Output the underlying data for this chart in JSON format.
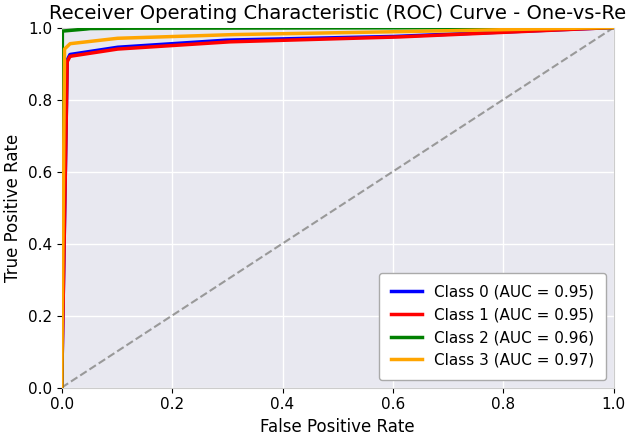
{
  "title": "Receiver Operating Characteristic (ROC) Curve - One-vs-Re",
  "xlabel": "False Positive Rate",
  "ylabel": "True Positive Rate",
  "xlim": [
    0.0,
    1.0
  ],
  "ylim": [
    0.0,
    1.0
  ],
  "background_color": "#e8e8f0",
  "grid": true,
  "classes": [
    {
      "label": "Class 0 (AUC = 0.95)",
      "color": "#0000ff",
      "auc": 0.95,
      "fpr": [
        0.0,
        0.01,
        0.015,
        0.1,
        0.3,
        0.6,
        1.0
      ],
      "tpr": [
        0.0,
        0.91,
        0.925,
        0.945,
        0.965,
        0.975,
        1.0
      ]
    },
    {
      "label": "Class 1 (AUC = 0.95)",
      "color": "#ff0000",
      "auc": 0.95,
      "fpr": [
        0.0,
        0.01,
        0.015,
        0.1,
        0.3,
        0.6,
        1.0
      ],
      "tpr": [
        0.0,
        0.905,
        0.92,
        0.94,
        0.96,
        0.973,
        1.0
      ]
    },
    {
      "label": "Class 2 (AUC = 0.96)",
      "color": "#008000",
      "auc": 0.96,
      "fpr": [
        0.0,
        0.001,
        0.04,
        0.05,
        0.1,
        0.5,
        1.0
      ],
      "tpr": [
        0.0,
        0.99,
        0.995,
        0.997,
        0.998,
        0.999,
        1.0
      ]
    },
    {
      "label": "Class 3 (AUC = 0.97)",
      "color": "#ffa500",
      "auc": 0.97,
      "fpr": [
        0.0,
        0.005,
        0.015,
        0.1,
        0.3,
        0.6,
        1.0
      ],
      "tpr": [
        0.0,
        0.94,
        0.955,
        0.97,
        0.98,
        0.988,
        1.0
      ]
    }
  ],
  "diagonal_color": "#999999",
  "diagonal_style": "--",
  "legend_loc": "lower right",
  "title_fontsize": 14,
  "label_fontsize": 12,
  "tick_fontsize": 11,
  "line_width": 2.5
}
